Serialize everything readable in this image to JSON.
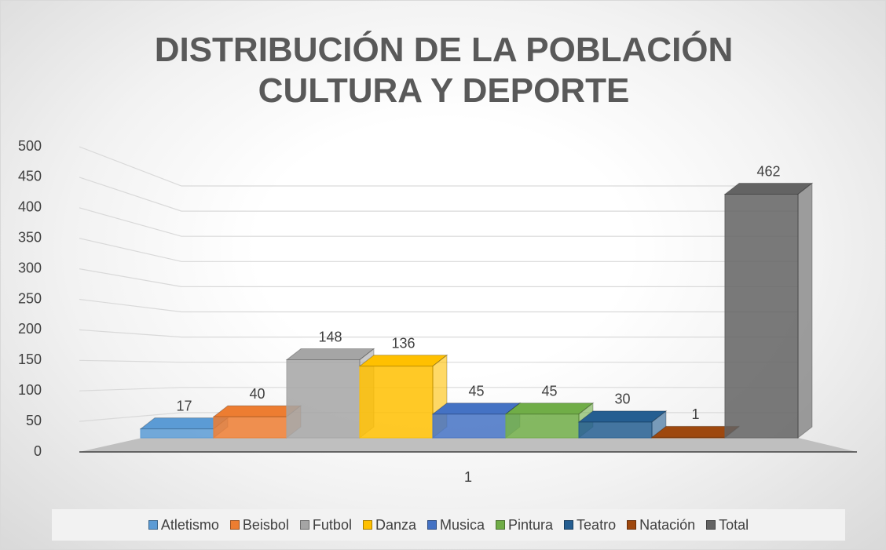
{
  "chart_data": {
    "type": "bar",
    "title": "DISTRIBUCIÓN DE LA POBLACIÓN CULTURA Y DEPORTE",
    "categories": [
      "1"
    ],
    "series": [
      {
        "name": "Atletismo",
        "color": "#5b9bd5",
        "values": [
          17
        ]
      },
      {
        "name": "Beisbol",
        "color": "#ed7d31",
        "values": [
          40
        ]
      },
      {
        "name": "Futbol",
        "color": "#a5a5a5",
        "values": [
          148
        ]
      },
      {
        "name": "Danza",
        "color": "#ffc000",
        "values": [
          136
        ]
      },
      {
        "name": "Musica",
        "color": "#4472c4",
        "values": [
          45
        ]
      },
      {
        "name": "Pintura",
        "color": "#70ad47",
        "values": [
          45
        ]
      },
      {
        "name": "Teatro",
        "color": "#255e91",
        "values": [
          30
        ]
      },
      {
        "name": "Natación",
        "color": "#9e480e",
        "values": [
          1
        ]
      },
      {
        "name": "Total",
        "color": "#636363",
        "values": [
          462
        ]
      }
    ],
    "ylim": [
      0,
      500
    ],
    "yticks": [
      0,
      50,
      100,
      150,
      200,
      250,
      300,
      350,
      400,
      450,
      500
    ],
    "grid": true,
    "legend": "bottom"
  }
}
